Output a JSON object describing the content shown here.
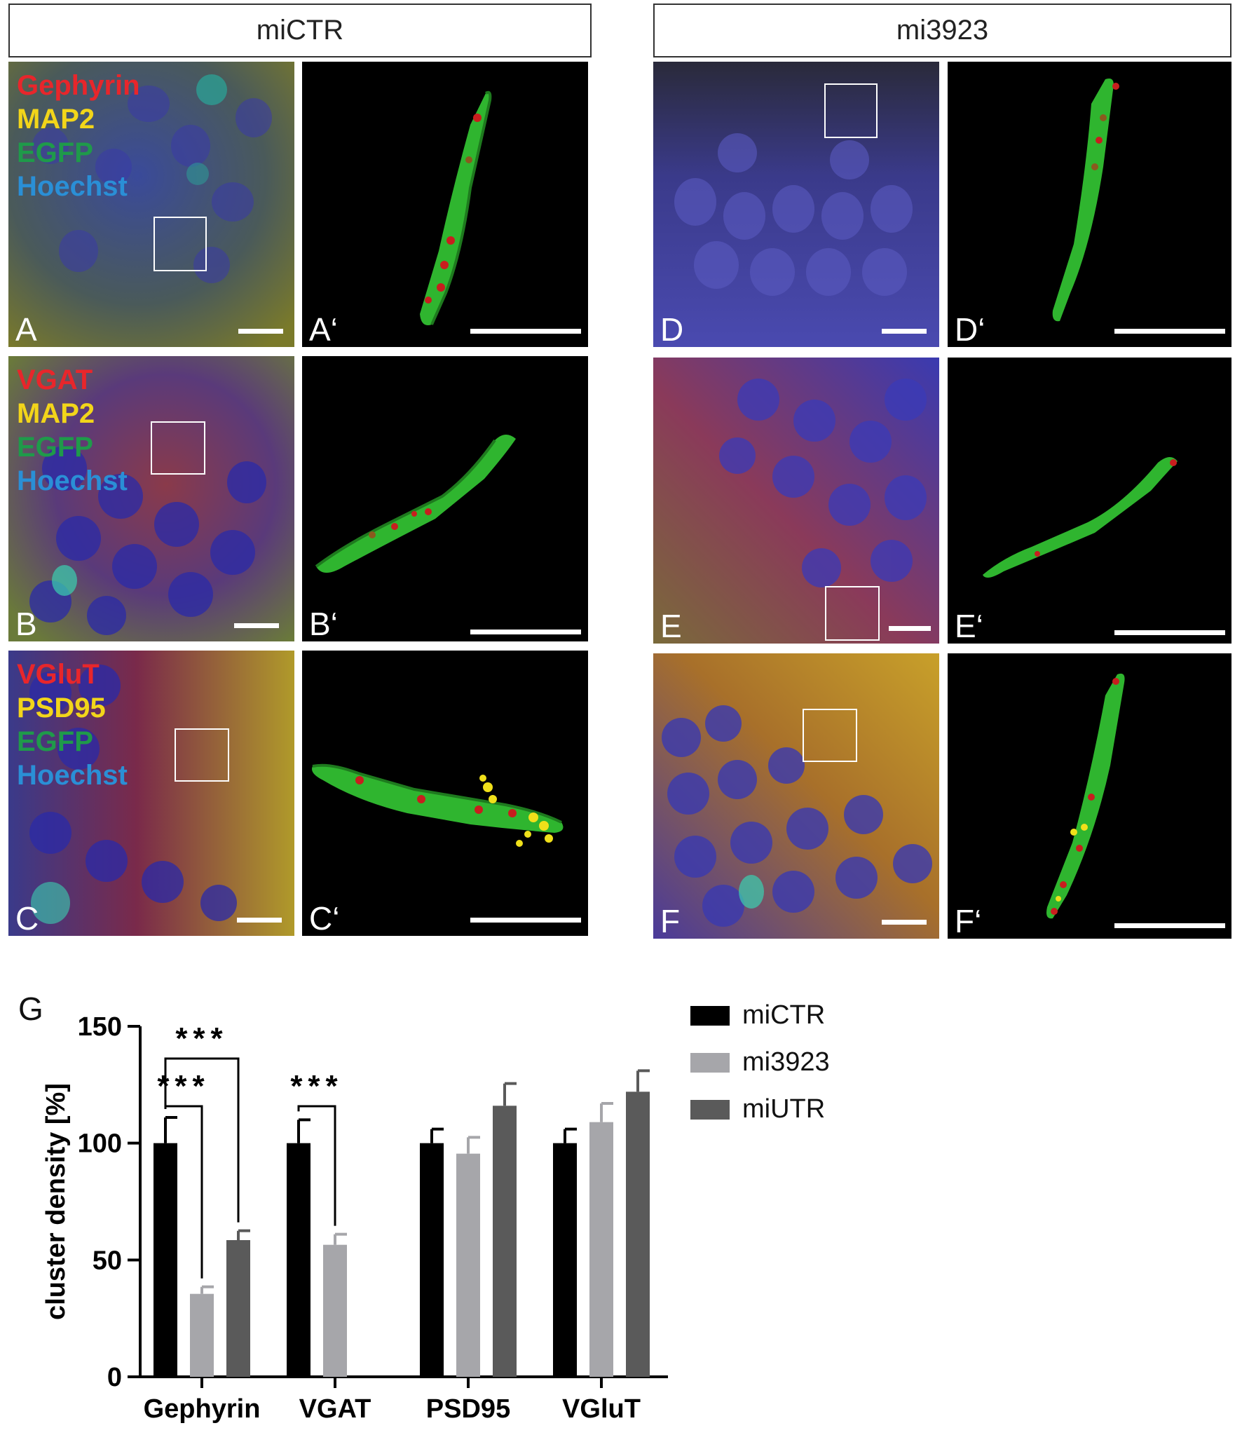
{
  "headers": {
    "left": "miCTR",
    "right": "mi3923"
  },
  "panels": {
    "A": {
      "label": "A",
      "markers": [
        "Gephyrin",
        "MAP2",
        "EGFP",
        "Hoechst"
      ]
    },
    "A_prime": {
      "label": "A‘"
    },
    "B": {
      "label": "B",
      "markers": [
        "VGAT",
        "MAP2",
        "EGFP",
        "Hoechst"
      ]
    },
    "B_prime": {
      "label": "B‘"
    },
    "C": {
      "label": "C",
      "markers": [
        "VGluT",
        "PSD95",
        "EGFP",
        "Hoechst"
      ]
    },
    "C_prime": {
      "label": "C‘"
    },
    "D": {
      "label": "D"
    },
    "D_prime": {
      "label": "D‘"
    },
    "E": {
      "label": "E"
    },
    "E_prime": {
      "label": "E‘"
    },
    "F": {
      "label": "F"
    },
    "F_prime": {
      "label": "F‘"
    }
  },
  "marker_colors": {
    "Gephyrin": "#e8262b",
    "VGAT": "#e8262b",
    "VGluT": "#e8262b",
    "MAP2": "#f2d51a",
    "PSD95": "#f2d51a",
    "EGFP": "#1f9a4a",
    "Hoechst": "#2a8fd6"
  },
  "panel_G_label": "G",
  "chart_data": {
    "type": "bar",
    "categories": [
      "Gephyrin",
      "VGAT",
      "PSD95",
      "VGluT"
    ],
    "ylabel": "cluster density [%]",
    "ylim": [
      0,
      150
    ],
    "yticks": [
      0,
      50,
      100,
      150
    ],
    "series": [
      {
        "name": "miCTR",
        "color": "#000000",
        "values": [
          100,
          100,
          100,
          100
        ],
        "errors": [
          11,
          10,
          6,
          6
        ]
      },
      {
        "name": "mi3923",
        "color": "#a6a6aa",
        "values": [
          35.5,
          56.5,
          95.5,
          109
        ],
        "errors": [
          3,
          4.5,
          7,
          8
        ]
      },
      {
        "name": "miUTR",
        "color": "#5a5a5a",
        "values": [
          58.5,
          null,
          116,
          122
        ],
        "errors": [
          4,
          null,
          9.5,
          9
        ]
      }
    ],
    "significance": [
      {
        "category": "Gephyrin",
        "from": "miCTR",
        "to": "mi3923",
        "label": "***"
      },
      {
        "category": "Gephyrin",
        "from": "miCTR",
        "to": "miUTR",
        "label": "***"
      },
      {
        "category": "VGAT",
        "from": "miCTR",
        "to": "mi3923",
        "label": "***"
      }
    ],
    "legend": "right"
  }
}
